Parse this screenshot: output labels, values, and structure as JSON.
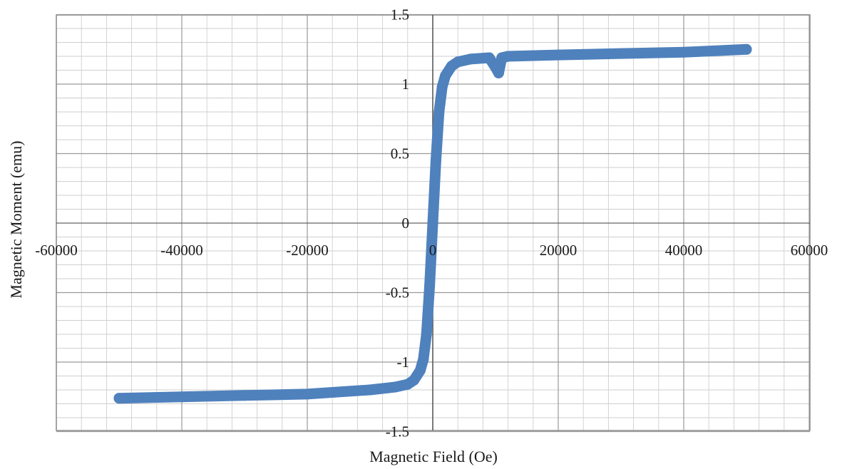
{
  "chart_data": {
    "type": "scatter",
    "xlabel": "Magnetic Field (Oe)",
    "ylabel": "Magnetic Moment (emu)",
    "xlim": [
      -60000,
      60000
    ],
    "ylim": [
      -1.5,
      1.5
    ],
    "x_ticks": [
      -60000,
      -40000,
      -20000,
      0,
      20000,
      40000,
      60000
    ],
    "x_tick_labels": [
      "-60000",
      "-40000",
      "-20000",
      "0",
      "20000",
      "40000",
      "60000"
    ],
    "y_ticks": [
      -1.5,
      -1,
      -0.5,
      0,
      0.5,
      1,
      1.5
    ],
    "y_tick_labels": [
      "-1.5",
      "-1",
      "-0.5",
      "0",
      "0.5",
      "1",
      "1.5"
    ],
    "grid": true,
    "minor_grid": true,
    "legend": "none",
    "series": [
      {
        "color": "#4f81bd",
        "x": [
          -50000,
          -40000,
          -30000,
          -20000,
          -10000,
          -6000,
          -4000,
          -3000,
          -2000,
          -1500,
          -1000,
          -500,
          0,
          500,
          1000,
          1500,
          2000,
          3000,
          4000,
          6000,
          9000,
          10000,
          10500,
          11000,
          12000,
          20000,
          30000,
          40000,
          50000
        ],
        "y": [
          -1.26,
          -1.25,
          -1.24,
          -1.23,
          -1.2,
          -1.18,
          -1.16,
          -1.13,
          -1.06,
          -0.98,
          -0.8,
          -0.45,
          0.0,
          0.45,
          0.8,
          0.98,
          1.06,
          1.13,
          1.16,
          1.18,
          1.19,
          1.12,
          1.08,
          1.19,
          1.2,
          1.21,
          1.22,
          1.23,
          1.25
        ]
      }
    ]
  }
}
